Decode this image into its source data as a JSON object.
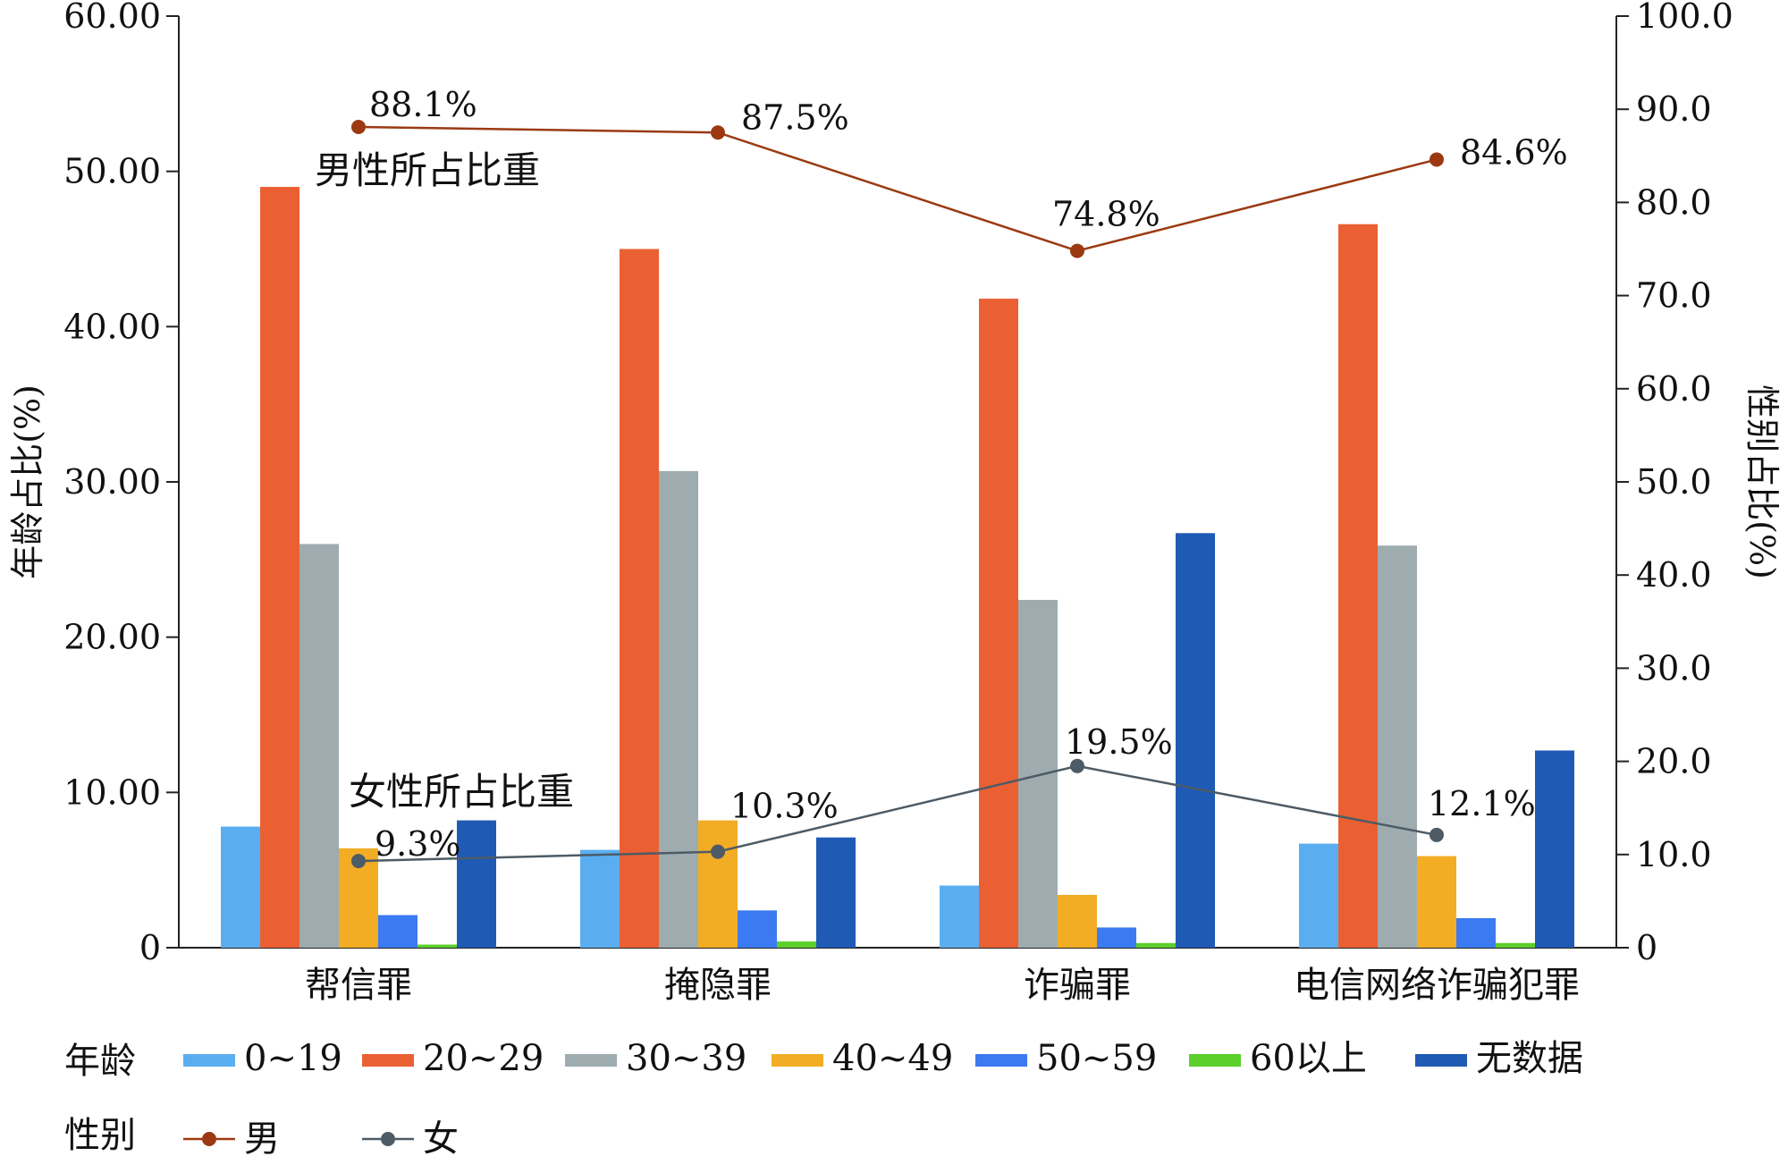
{
  "chart_data": {
    "type": "bar",
    "categories": [
      "帮信罪",
      "掩隐罪",
      "诈骗罪",
      "电信网络诈骗犯罪"
    ],
    "bar_series": [
      {
        "name": "0~19",
        "color": "#5aaef0",
        "values": [
          7.8,
          6.3,
          4.0,
          6.7
        ]
      },
      {
        "name": "20~29",
        "color": "#ea6033",
        "values": [
          49.0,
          45.0,
          41.8,
          46.6
        ]
      },
      {
        "name": "30~39",
        "color": "#9eacb0",
        "values": [
          26.0,
          30.7,
          22.4,
          25.9
        ]
      },
      {
        "name": "40~49",
        "color": "#f2ad25",
        "values": [
          6.4,
          8.2,
          3.4,
          5.9
        ]
      },
      {
        "name": "50~59",
        "color": "#3b7af0",
        "values": [
          2.1,
          2.4,
          1.3,
          1.9
        ]
      },
      {
        "name": "60以上",
        "color": "#5ccf2a",
        "values": [
          0.2,
          0.4,
          0.3,
          0.3
        ]
      },
      {
        "name": "无数据",
        "color": "#1f5ab5",
        "values": [
          8.2,
          7.1,
          26.7,
          12.7
        ]
      }
    ],
    "line_series": [
      {
        "name": "男",
        "color": "#9b3a12",
        "values": [
          88.1,
          87.5,
          74.8,
          84.6
        ],
        "labels": [
          "88.1%",
          "87.5%",
          "74.8%",
          "84.6%"
        ]
      },
      {
        "name": "女",
        "color": "#4d5b66",
        "values": [
          9.3,
          10.3,
          19.5,
          12.1
        ],
        "labels": [
          "9.3%",
          "10.3%",
          "19.5%",
          "12.1%"
        ]
      }
    ],
    "left_axis": {
      "label": "年龄占比(%)",
      "ylim": [
        0,
        60
      ],
      "ticks": [
        0,
        10,
        20,
        30,
        40,
        50,
        60
      ],
      "tick_labels": [
        "0",
        "10.00",
        "20.00",
        "30.00",
        "40.00",
        "50.00",
        "60.00"
      ]
    },
    "right_axis": {
      "label": "性别占比(%)",
      "ylim": [
        0,
        100
      ],
      "ticks": [
        0,
        10,
        20,
        30,
        40,
        50,
        60,
        70,
        80,
        90,
        100
      ],
      "tick_labels": [
        "0",
        "10.0",
        "20.0",
        "30.0",
        "40.0",
        "50.0",
        "60.0",
        "70.0",
        "80.0",
        "90.0",
        "100.0"
      ]
    },
    "annotations": {
      "male_note": "男性所占比重",
      "female_note": "女性所占比重"
    },
    "legend": {
      "age_title": "年龄",
      "gender_title": "性别",
      "placement": "bottom"
    },
    "grid": false
  }
}
